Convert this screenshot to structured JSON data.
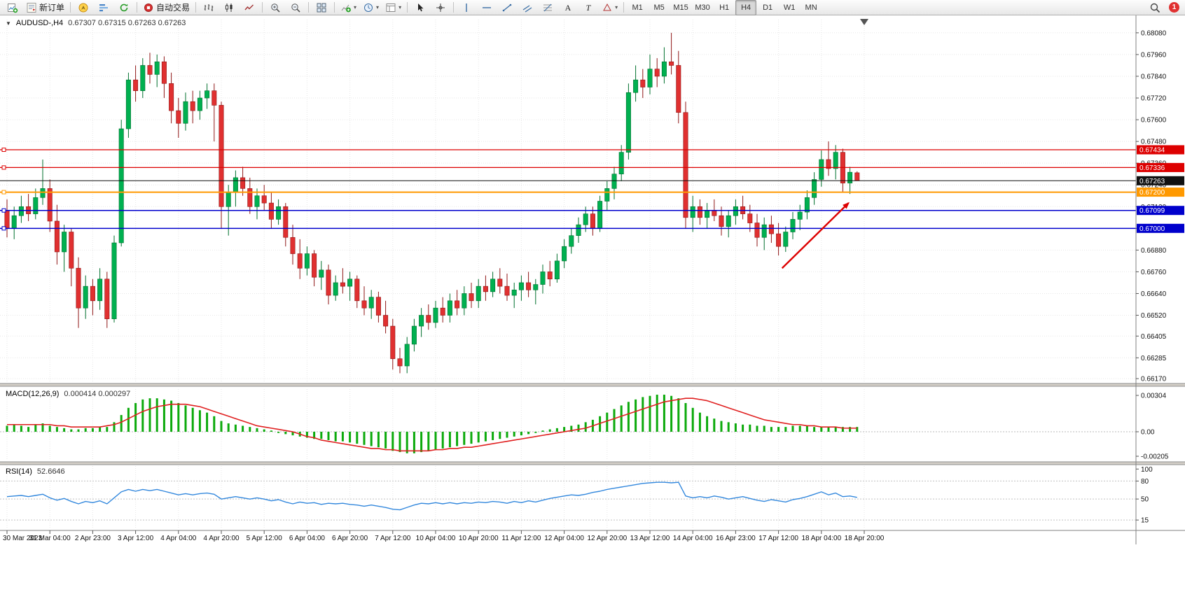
{
  "toolbar": {
    "new_order_label": "新订单",
    "auto_trading_label": "自动交易",
    "timeframes": [
      "M1",
      "M5",
      "M15",
      "M30",
      "H1",
      "H4",
      "D1",
      "W1",
      "MN"
    ],
    "active_timeframe": "H4",
    "notification_count": "1",
    "icons": [
      "new-chart",
      "new-order",
      "compass",
      "market-depth",
      "refresh",
      "auto-trading",
      "bar-chart",
      "candlestick-chart",
      "line-chart",
      "zoom-in",
      "zoom-out",
      "tile-windows",
      "indicators",
      "periods",
      "templates",
      "cursor",
      "crosshair",
      "vertical-line",
      "horizontal-line",
      "trendline",
      "channel",
      "fibonacci",
      "text",
      "label",
      "shapes",
      "search",
      "notification"
    ]
  },
  "chart_data": {
    "type": "candlestick",
    "symbol_label": "AUDUSD-,H4",
    "ohlc_text": "0.67307  0.67315  0.67263  0.67263",
    "timeframe": "H4",
    "ylim": [
      0.66151,
      0.68153
    ],
    "price_axis_ticks": [
      "0.68080",
      "0.67960",
      "0.67840",
      "0.67720",
      "0.67600",
      "0.67480",
      "0.67360",
      "0.67240",
      "0.67120",
      "0.67000",
      "0.66880",
      "0.66760",
      "0.66640",
      "0.66520",
      "0.66405",
      "0.66285",
      "0.66170"
    ],
    "time_labels": [
      "30 Mar 2023",
      "31 Mar 04:00",
      "2 Apr 23:00",
      "3 Apr 12:00",
      "4 Apr 04:00",
      "4 Apr 20:00",
      "5 Apr 12:00",
      "6 Apr 04:00",
      "6 Apr 20:00",
      "7 Apr 12:00",
      "10 Apr 04:00",
      "10 Apr 20:00",
      "11 Apr 12:00",
      "12 Apr 04:00",
      "12 Apr 20:00",
      "13 Apr 12:00",
      "14 Apr 04:00",
      "16 Apr 23:00",
      "17 Apr 12:00",
      "18 Apr 04:00",
      "18 Apr 20:00"
    ],
    "colors": {
      "up": "#00b050",
      "up_border": "#00702e",
      "down": "#e03030",
      "down_border": "#8f1616",
      "grid": "#e7e7e7",
      "axis": "#808080"
    },
    "candles": [
      [
        0.671,
        0.6716,
        0.6695,
        0.67
      ],
      [
        0.67,
        0.6712,
        0.6694,
        0.6707
      ],
      [
        0.6707,
        0.6718,
        0.6703,
        0.6712
      ],
      [
        0.6712,
        0.6719,
        0.6704,
        0.6708
      ],
      [
        0.6708,
        0.6722,
        0.6705,
        0.6717
      ],
      [
        0.6717,
        0.6738,
        0.6713,
        0.6722
      ],
      [
        0.6722,
        0.6727,
        0.6698,
        0.6704
      ],
      [
        0.6704,
        0.6713,
        0.668,
        0.6687
      ],
      [
        0.6687,
        0.6702,
        0.6676,
        0.6698
      ],
      [
        0.6698,
        0.67,
        0.6668,
        0.6678
      ],
      [
        0.6678,
        0.6684,
        0.6645,
        0.6656
      ],
      [
        0.6656,
        0.6674,
        0.665,
        0.6668
      ],
      [
        0.6668,
        0.6672,
        0.6652,
        0.666
      ],
      [
        0.666,
        0.6678,
        0.6655,
        0.6672
      ],
      [
        0.6672,
        0.6676,
        0.6645,
        0.665
      ],
      [
        0.665,
        0.6696,
        0.6648,
        0.6692
      ],
      [
        0.6692,
        0.676,
        0.669,
        0.6755
      ],
      [
        0.6755,
        0.6786,
        0.675,
        0.6782
      ],
      [
        0.6782,
        0.679,
        0.677,
        0.6776
      ],
      [
        0.6776,
        0.6794,
        0.6772,
        0.679
      ],
      [
        0.679,
        0.6797,
        0.678,
        0.6785
      ],
      [
        0.6785,
        0.6796,
        0.6778,
        0.6792
      ],
      [
        0.6792,
        0.6795,
        0.6772,
        0.678
      ],
      [
        0.678,
        0.6786,
        0.6758,
        0.6765
      ],
      [
        0.6765,
        0.6772,
        0.675,
        0.6758
      ],
      [
        0.6758,
        0.6775,
        0.6754,
        0.677
      ],
      [
        0.677,
        0.6776,
        0.6758,
        0.6765
      ],
      [
        0.6765,
        0.6776,
        0.676,
        0.6772
      ],
      [
        0.6772,
        0.678,
        0.6766,
        0.6776
      ],
      [
        0.6776,
        0.678,
        0.6748,
        0.6768
      ],
      [
        0.6768,
        0.677,
        0.67,
        0.6712
      ],
      [
        0.6712,
        0.6724,
        0.6696,
        0.672
      ],
      [
        0.672,
        0.6732,
        0.6712,
        0.6728
      ],
      [
        0.6728,
        0.6734,
        0.6718,
        0.6722
      ],
      [
        0.6722,
        0.6728,
        0.6708,
        0.6712
      ],
      [
        0.6712,
        0.6722,
        0.6705,
        0.6718
      ],
      [
        0.6718,
        0.6724,
        0.671,
        0.6714
      ],
      [
        0.6714,
        0.672,
        0.67,
        0.6705
      ],
      [
        0.6705,
        0.6716,
        0.6702,
        0.6712
      ],
      [
        0.6712,
        0.6714,
        0.669,
        0.6695
      ],
      [
        0.6695,
        0.6702,
        0.668,
        0.6686
      ],
      [
        0.6686,
        0.6694,
        0.6672,
        0.6678
      ],
      [
        0.6678,
        0.669,
        0.6674,
        0.6686
      ],
      [
        0.6686,
        0.6688,
        0.6668,
        0.6673
      ],
      [
        0.6673,
        0.6682,
        0.6666,
        0.6677
      ],
      [
        0.6677,
        0.668,
        0.6658,
        0.6663
      ],
      [
        0.6663,
        0.6674,
        0.666,
        0.667
      ],
      [
        0.667,
        0.6678,
        0.6664,
        0.6668
      ],
      [
        0.6668,
        0.6676,
        0.666,
        0.6672
      ],
      [
        0.6672,
        0.6674,
        0.6656,
        0.666
      ],
      [
        0.666,
        0.6668,
        0.6652,
        0.6656
      ],
      [
        0.6656,
        0.6666,
        0.665,
        0.6662
      ],
      [
        0.6662,
        0.6665,
        0.6648,
        0.6652
      ],
      [
        0.6652,
        0.666,
        0.6642,
        0.6646
      ],
      [
        0.6646,
        0.665,
        0.6622,
        0.6628
      ],
      [
        0.6628,
        0.6634,
        0.662,
        0.6624
      ],
      [
        0.6624,
        0.664,
        0.662,
        0.6636
      ],
      [
        0.6636,
        0.665,
        0.6632,
        0.6646
      ],
      [
        0.6646,
        0.6656,
        0.664,
        0.6652
      ],
      [
        0.6652,
        0.6658,
        0.6644,
        0.6648
      ],
      [
        0.6648,
        0.666,
        0.6645,
        0.6656
      ],
      [
        0.6656,
        0.6662,
        0.6648,
        0.6652
      ],
      [
        0.6652,
        0.6664,
        0.6648,
        0.666
      ],
      [
        0.666,
        0.6666,
        0.6652,
        0.6656
      ],
      [
        0.6656,
        0.6668,
        0.6652,
        0.6664
      ],
      [
        0.6664,
        0.667,
        0.6656,
        0.666
      ],
      [
        0.666,
        0.6672,
        0.6656,
        0.6668
      ],
      [
        0.6668,
        0.6674,
        0.666,
        0.6665
      ],
      [
        0.6665,
        0.6676,
        0.6662,
        0.6672
      ],
      [
        0.6672,
        0.6678,
        0.6664,
        0.6668
      ],
      [
        0.6668,
        0.6675,
        0.666,
        0.6663
      ],
      [
        0.6663,
        0.667,
        0.6656,
        0.6666
      ],
      [
        0.6666,
        0.6674,
        0.666,
        0.667
      ],
      [
        0.667,
        0.6676,
        0.6662,
        0.6666
      ],
      [
        0.6666,
        0.6672,
        0.6658,
        0.6669
      ],
      [
        0.6669,
        0.668,
        0.6664,
        0.6676
      ],
      [
        0.6676,
        0.6682,
        0.6668,
        0.6672
      ],
      [
        0.6672,
        0.6686,
        0.667,
        0.6682
      ],
      [
        0.6682,
        0.6694,
        0.6678,
        0.669
      ],
      [
        0.669,
        0.67,
        0.6686,
        0.6696
      ],
      [
        0.6696,
        0.6706,
        0.6692,
        0.6702
      ],
      [
        0.6702,
        0.6712,
        0.6698,
        0.6708
      ],
      [
        0.6708,
        0.6712,
        0.6696,
        0.67
      ],
      [
        0.67,
        0.6718,
        0.6698,
        0.6715
      ],
      [
        0.6715,
        0.6726,
        0.671,
        0.6722
      ],
      [
        0.6722,
        0.6734,
        0.6716,
        0.673
      ],
      [
        0.673,
        0.6746,
        0.6726,
        0.6742
      ],
      [
        0.6742,
        0.678,
        0.6738,
        0.6775
      ],
      [
        0.6775,
        0.679,
        0.677,
        0.6782
      ],
      [
        0.6782,
        0.6788,
        0.6772,
        0.6778
      ],
      [
        0.6778,
        0.6796,
        0.6774,
        0.6788
      ],
      [
        0.6788,
        0.6794,
        0.6778,
        0.6784
      ],
      [
        0.6784,
        0.68,
        0.678,
        0.6792
      ],
      [
        0.6792,
        0.6808,
        0.6785,
        0.679
      ],
      [
        0.679,
        0.6798,
        0.6758,
        0.6764
      ],
      [
        0.6764,
        0.677,
        0.67,
        0.6706
      ],
      [
        0.6706,
        0.6718,
        0.6698,
        0.6712
      ],
      [
        0.6712,
        0.6716,
        0.6702,
        0.6706
      ],
      [
        0.6706,
        0.6714,
        0.67,
        0.671
      ],
      [
        0.671,
        0.6716,
        0.6704,
        0.6707
      ],
      [
        0.6707,
        0.6712,
        0.6696,
        0.6701
      ],
      [
        0.6701,
        0.671,
        0.6695,
        0.6707
      ],
      [
        0.6707,
        0.6716,
        0.6702,
        0.6712
      ],
      [
        0.6712,
        0.6718,
        0.6705,
        0.6708
      ],
      [
        0.6708,
        0.6713,
        0.6698,
        0.6703
      ],
      [
        0.6703,
        0.6708,
        0.669,
        0.6695
      ],
      [
        0.6695,
        0.6706,
        0.6688,
        0.6702
      ],
      [
        0.6702,
        0.6707,
        0.6692,
        0.6697
      ],
      [
        0.6697,
        0.6703,
        0.6685,
        0.669
      ],
      [
        0.669,
        0.6701,
        0.6687,
        0.6698
      ],
      [
        0.6698,
        0.6709,
        0.6694,
        0.6705
      ],
      [
        0.6705,
        0.6713,
        0.6699,
        0.6709
      ],
      [
        0.6709,
        0.6721,
        0.6705,
        0.6717
      ],
      [
        0.6717,
        0.6731,
        0.6713,
        0.6727
      ],
      [
        0.6727,
        0.6743,
        0.6723,
        0.6738
      ],
      [
        0.6738,
        0.6748,
        0.6729,
        0.6733
      ],
      [
        0.6733,
        0.6746,
        0.6727,
        0.6742
      ],
      [
        0.6742,
        0.6744,
        0.672,
        0.6725
      ],
      [
        0.6725,
        0.6734,
        0.6719,
        0.6731
      ],
      [
        0.67307,
        0.67315,
        0.67263,
        0.67263
      ]
    ],
    "hlines": [
      {
        "price": 0.67434,
        "label": "0.67434",
        "color": "#dd0000",
        "width": 1.3
      },
      {
        "price": 0.67336,
        "label": "0.67336",
        "color": "#dd0000",
        "width": 1.3
      },
      {
        "price": 0.672,
        "label": "0.67200",
        "color": "#ff9900",
        "width": 2
      },
      {
        "price": 0.67099,
        "label": "0.67099",
        "color": "#0000cc",
        "width": 1.5
      },
      {
        "price": 0.67,
        "label": "0.67000",
        "color": "#0000cc",
        "width": 1.5
      }
    ],
    "current_price_line": {
      "price": 0.67263,
      "label": "0.67263",
      "color": "#111111"
    },
    "arrow": {
      "from": {
        "index": 108.5,
        "price": 0.6678
      },
      "to": {
        "index": 117.8,
        "price": 0.6714
      },
      "color": "#dd0000"
    },
    "indicators": [
      {
        "id": "macd",
        "label": "MACD(12,26,9)",
        "values_text": "0.000414 0.000297",
        "axis_labels": [
          "0.00304",
          "0.00",
          "-0.00205"
        ],
        "ylim": [
          -0.0024,
          0.00357
        ],
        "histogram_color": "#0caa0c",
        "signal_color": "#e02020",
        "histogram": [
          0.0005,
          0.0006,
          0.0005,
          0.0004,
          0.0006,
          0.0007,
          0.0005,
          0.0004,
          0.0003,
          0.0002,
          0.0002,
          0.0003,
          0.0003,
          0.0004,
          0.0004,
          0.0008,
          0.0014,
          0.002,
          0.0024,
          0.0027,
          0.0028,
          0.0028,
          0.0027,
          0.0026,
          0.0024,
          0.0022,
          0.002,
          0.0018,
          0.0016,
          0.0013,
          0.0009,
          0.0007,
          0.0006,
          0.0005,
          0.0004,
          0.0003,
          0.0002,
          0.0001,
          -0.0001,
          -0.0002,
          -0.0003,
          -0.0004,
          -0.0005,
          -0.0006,
          -0.0006,
          -0.0007,
          -0.0008,
          -0.0008,
          -0.0009,
          -0.001,
          -0.0011,
          -0.0012,
          -0.0013,
          -0.0014,
          -0.0016,
          -0.0017,
          -0.0018,
          -0.0018,
          -0.0017,
          -0.0016,
          -0.0015,
          -0.0014,
          -0.0013,
          -0.0012,
          -0.0011,
          -0.001,
          -0.0009,
          -0.0008,
          -0.0007,
          -0.0006,
          -0.0005,
          -0.0004,
          -0.0003,
          -0.0002,
          -0.0001,
          0.0001,
          0.0002,
          0.0003,
          0.0004,
          0.0005,
          0.0006,
          0.0008,
          0.001,
          0.0013,
          0.0016,
          0.0019,
          0.0022,
          0.0025,
          0.0027,
          0.0029,
          0.003,
          0.0031,
          0.0031,
          0.003,
          0.0028,
          0.0024,
          0.002,
          0.0016,
          0.0013,
          0.0011,
          0.0009,
          0.0008,
          0.0007,
          0.0006,
          0.0006,
          0.0005,
          0.0005,
          0.0004,
          0.0004,
          0.0004,
          0.0005,
          0.0005,
          0.0005,
          0.0004,
          0.0004,
          0.0004,
          0.0004,
          0.0004,
          0.0004,
          0.0004
        ],
        "signal": [
          0.0006,
          0.0006,
          0.0006,
          0.0006,
          0.0006,
          0.0006,
          0.0006,
          0.0005,
          0.0005,
          0.0004,
          0.0004,
          0.0004,
          0.0004,
          0.0004,
          0.0005,
          0.0006,
          0.0008,
          0.0011,
          0.0014,
          0.0017,
          0.0019,
          0.0021,
          0.0022,
          0.0023,
          0.0023,
          0.0023,
          0.0022,
          0.0021,
          0.0019,
          0.0017,
          0.0015,
          0.0013,
          0.0011,
          0.0009,
          0.0007,
          0.0005,
          0.0004,
          0.0003,
          0.0002,
          0.0001,
          0.0,
          -0.0002,
          -0.0004,
          -0.0005,
          -0.0007,
          -0.0008,
          -0.0009,
          -0.001,
          -0.0011,
          -0.0012,
          -0.0013,
          -0.0014,
          -0.0014,
          -0.0015,
          -0.0015,
          -0.0016,
          -0.0016,
          -0.0016,
          -0.0016,
          -0.0016,
          -0.0015,
          -0.0015,
          -0.0014,
          -0.0014,
          -0.0013,
          -0.0013,
          -0.0012,
          -0.0011,
          -0.001,
          -0.0009,
          -0.0008,
          -0.0007,
          -0.0006,
          -0.0005,
          -0.0004,
          -0.0003,
          -0.0002,
          -0.0001,
          0.0,
          0.0001,
          0.0002,
          0.0003,
          0.0005,
          0.0007,
          0.0009,
          0.0011,
          0.0013,
          0.0015,
          0.0017,
          0.0019,
          0.0021,
          0.0023,
          0.0025,
          0.0026,
          0.0027,
          0.0028,
          0.0028,
          0.0027,
          0.0026,
          0.0024,
          0.0022,
          0.002,
          0.0018,
          0.0016,
          0.0014,
          0.0012,
          0.001,
          0.0009,
          0.0008,
          0.0007,
          0.0006,
          0.0006,
          0.0005,
          0.0005,
          0.0004,
          0.0004,
          0.0004,
          0.0003,
          0.0003,
          0.0003
        ]
      },
      {
        "id": "rsi",
        "label": "RSI(14)",
        "value_text": "52.6646",
        "axis_labels": [
          "100",
          "80",
          "50",
          "15"
        ],
        "levels": [
          80,
          50,
          15
        ],
        "ylim": [
          0,
          105
        ],
        "line_color": "#3388dd",
        "values": [
          54,
          55,
          56,
          54,
          56,
          58,
          52,
          48,
          51,
          46,
          42,
          46,
          44,
          47,
          42,
          52,
          62,
          66,
          63,
          66,
          64,
          66,
          63,
          60,
          57,
          59,
          57,
          59,
          60,
          58,
          50,
          52,
          54,
          52,
          50,
          52,
          50,
          47,
          49,
          45,
          42,
          45,
          43,
          44,
          41,
          43,
          42,
          43,
          41,
          40,
          38,
          40,
          38,
          36,
          33,
          32,
          36,
          40,
          43,
          42,
          44,
          42,
          44,
          42,
          44,
          43,
          45,
          44,
          46,
          45,
          43,
          46,
          44,
          47,
          45,
          48,
          51,
          53,
          55,
          57,
          56,
          58,
          61,
          63,
          66,
          68,
          70,
          72,
          74,
          76,
          77,
          78,
          78,
          77,
          78,
          55,
          52,
          54,
          52,
          55,
          53,
          50,
          52,
          54,
          51,
          48,
          46,
          49,
          47,
          45,
          49,
          51,
          54,
          58,
          62,
          57,
          60,
          54,
          55,
          52.66
        ]
      }
    ]
  }
}
